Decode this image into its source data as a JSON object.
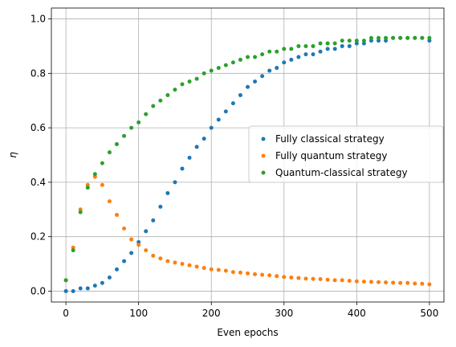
{
  "chart_data": {
    "type": "scatter",
    "xlabel": "Even epochs",
    "ylabel": "η",
    "xlim": [
      -20,
      520
    ],
    "ylim": [
      -0.04,
      1.04
    ],
    "xticks": [
      0,
      100,
      200,
      300,
      400,
      500
    ],
    "yticks": [
      0.0,
      0.2,
      0.4,
      0.6,
      0.8,
      1.0
    ],
    "xtick_labels": [
      "0",
      "100",
      "200",
      "300",
      "400",
      "500"
    ],
    "ytick_labels": [
      "0.0",
      "0.2",
      "0.4",
      "0.6",
      "0.8",
      "1.0"
    ],
    "grid": true,
    "legend_position": "center-right",
    "x": [
      0,
      10,
      20,
      30,
      40,
      50,
      60,
      70,
      80,
      90,
      100,
      110,
      120,
      130,
      140,
      150,
      160,
      170,
      180,
      190,
      200,
      210,
      220,
      230,
      240,
      250,
      260,
      270,
      280,
      290,
      300,
      310,
      320,
      330,
      340,
      350,
      360,
      370,
      380,
      390,
      400,
      410,
      420,
      430,
      440,
      450,
      460,
      470,
      480,
      490,
      500
    ],
    "series": [
      {
        "name": "Fully classical strategy",
        "color": "#1f77b4",
        "values": [
          0.0,
          0.0,
          0.01,
          0.01,
          0.02,
          0.03,
          0.05,
          0.08,
          0.11,
          0.14,
          0.18,
          0.22,
          0.26,
          0.31,
          0.36,
          0.4,
          0.45,
          0.49,
          0.53,
          0.56,
          0.6,
          0.63,
          0.66,
          0.69,
          0.72,
          0.75,
          0.77,
          0.79,
          0.81,
          0.82,
          0.84,
          0.85,
          0.86,
          0.87,
          0.87,
          0.88,
          0.89,
          0.89,
          0.9,
          0.9,
          0.91,
          0.91,
          0.92,
          0.92,
          0.92,
          0.93,
          0.93,
          0.93,
          0.93,
          0.93,
          0.92
        ]
      },
      {
        "name": "Fully quantum strategy",
        "color": "#ff7f0e",
        "values": [
          0.04,
          0.16,
          0.3,
          0.39,
          0.42,
          0.39,
          0.33,
          0.28,
          0.23,
          0.19,
          0.17,
          0.15,
          0.13,
          0.12,
          0.11,
          0.105,
          0.1,
          0.095,
          0.09,
          0.085,
          0.08,
          0.078,
          0.075,
          0.07,
          0.068,
          0.065,
          0.062,
          0.06,
          0.058,
          0.055,
          0.052,
          0.05,
          0.048,
          0.046,
          0.045,
          0.044,
          0.042,
          0.04,
          0.04,
          0.038,
          0.036,
          0.035,
          0.034,
          0.033,
          0.032,
          0.031,
          0.03,
          0.03,
          0.028,
          0.027,
          0.025
        ]
      },
      {
        "name": "Quantum-classical strategy",
        "color": "#2ca02c",
        "values": [
          0.04,
          0.15,
          0.29,
          0.38,
          0.43,
          0.47,
          0.51,
          0.54,
          0.57,
          0.6,
          0.62,
          0.65,
          0.68,
          0.7,
          0.72,
          0.74,
          0.76,
          0.77,
          0.78,
          0.8,
          0.81,
          0.82,
          0.83,
          0.84,
          0.85,
          0.86,
          0.86,
          0.87,
          0.88,
          0.88,
          0.89,
          0.89,
          0.9,
          0.9,
          0.9,
          0.91,
          0.91,
          0.91,
          0.92,
          0.92,
          0.92,
          0.92,
          0.93,
          0.93,
          0.93,
          0.93,
          0.93,
          0.93,
          0.93,
          0.93,
          0.93
        ]
      }
    ]
  }
}
